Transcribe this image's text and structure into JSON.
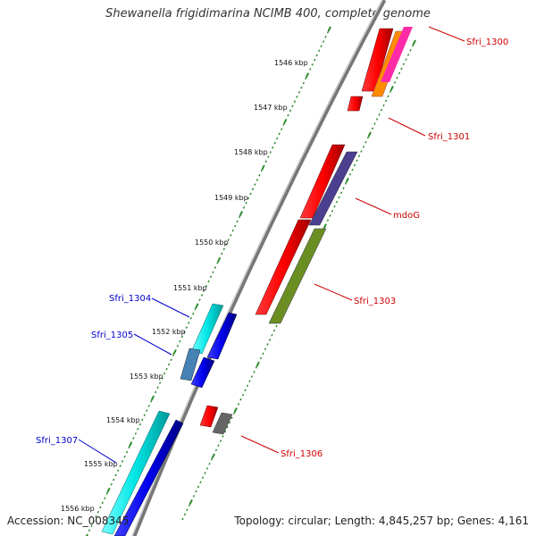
{
  "title": "Shewanella frigidimarina NCIMB 400, complete genome",
  "footer": {
    "accession": "Accession: NC_008345",
    "topology": "Topology: circular; Length: 4,845,257 bp; Genes: 4,161"
  },
  "colors": {
    "backbone": "#8c8c8c",
    "tick_green": "#2e8b2e",
    "label_red": "#cc0000",
    "label_blue": "#0000cc"
  },
  "kbp_labels": [
    "1546 kbp",
    "1547 kbp",
    "1548 kbp",
    "1549 kbp",
    "1550 kbp",
    "1551 kbp",
    "1552 kbp",
    "1553 kbp",
    "1554 kbp",
    "1555 kbp",
    "1556 kbp"
  ],
  "gene_labels": [
    {
      "text": "Sfri_1300",
      "strand": "forward"
    },
    {
      "text": "Sfri_1301",
      "strand": "forward"
    },
    {
      "text": "mdoG",
      "strand": "forward"
    },
    {
      "text": "Sfri_1303",
      "strand": "forward"
    },
    {
      "text": "Sfri_1306",
      "strand": "forward"
    },
    {
      "text": "Sfri_1304",
      "strand": "reverse"
    },
    {
      "text": "Sfri_1305",
      "strand": "reverse"
    },
    {
      "text": "Sfri_1307",
      "strand": "reverse"
    }
  ]
}
